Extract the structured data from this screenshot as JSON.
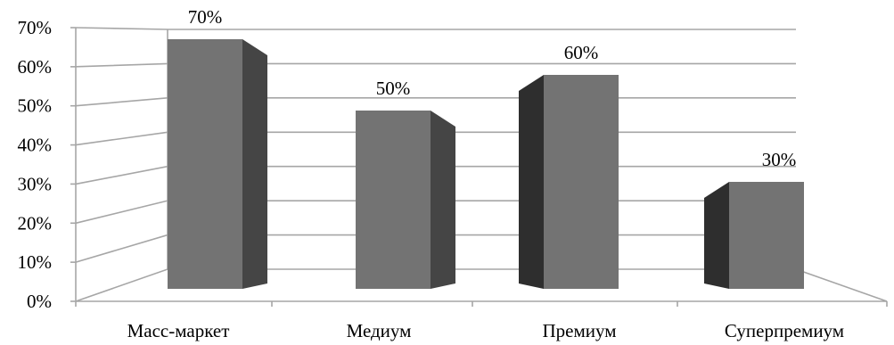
{
  "chart_data": {
    "type": "bar",
    "style": "3d-column",
    "categories": [
      "Масс-маркет",
      "Медиум",
      "Премиум",
      "Суперпремиум"
    ],
    "values": [
      70,
      50,
      60,
      30
    ],
    "value_labels": [
      "70%",
      "50%",
      "60%",
      "30%"
    ],
    "ylim": [
      0,
      70
    ],
    "yticks": [
      0,
      10,
      20,
      30,
      40,
      50,
      60,
      70
    ],
    "ytick_labels": [
      "0%",
      "10%",
      "20%",
      "30%",
      "40%",
      "50%",
      "60%",
      "70%"
    ],
    "grid": true,
    "legend": "none",
    "colors": {
      "bar_front": "#737373",
      "bar_side_dark": "#2e2e2e",
      "bar_side_mid": "#454545",
      "bar_top": "#8a8a8a",
      "grid": "#a6a6a6"
    }
  }
}
